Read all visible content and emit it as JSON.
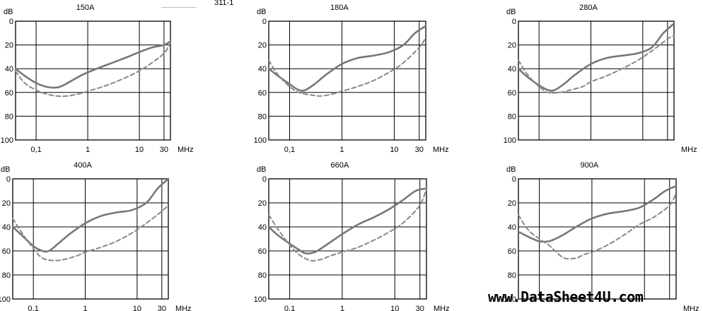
{
  "header_fragment": "311-1",
  "watermark": "www.DataSheet4U.com",
  "chart_data": [
    {
      "type": "line",
      "title": "150A",
      "ylabel": "dB",
      "xunit": "MHz",
      "xscale": "log",
      "xlim": [
        0.04,
        40
      ],
      "ylim": [
        0,
        100
      ],
      "y_inverted": true,
      "x_ticks": [
        "0,1",
        "1",
        "10",
        "30"
      ],
      "y_ticks": [
        "0",
        "20",
        "40",
        "60",
        "80",
        "100"
      ],
      "series": [
        {
          "style": "solid",
          "x": [
            0.04,
            0.06,
            0.1,
            0.15,
            0.22,
            0.3,
            0.45,
            0.8,
            1.5,
            3,
            6,
            10,
            18,
            30,
            40
          ],
          "y": [
            40,
            46,
            52,
            55,
            56,
            55,
            51,
            45,
            40,
            35,
            30,
            26,
            22,
            20,
            17
          ]
        },
        {
          "style": "dashed",
          "x": [
            0.04,
            0.06,
            0.1,
            0.15,
            0.25,
            0.4,
            0.7,
            1,
            2,
            4,
            8,
            15,
            30,
            40
          ],
          "y": [
            42,
            52,
            58,
            61,
            63,
            63,
            61,
            59,
            55,
            50,
            44,
            37,
            27,
            18
          ]
        }
      ]
    },
    {
      "type": "line",
      "title": "180A",
      "ylabel": "dB",
      "xunit": "MHz",
      "xscale": "log",
      "xlim": [
        0.04,
        40
      ],
      "ylim": [
        0,
        100
      ],
      "y_inverted": true,
      "x_ticks": [
        "0,1",
        "1",
        "10",
        "30"
      ],
      "y_ticks": [
        "0",
        "20",
        "40",
        "60",
        "80",
        "100"
      ],
      "series": [
        {
          "style": "solid",
          "x": [
            0.04,
            0.06,
            0.1,
            0.15,
            0.2,
            0.3,
            0.5,
            1,
            2,
            4,
            8,
            15,
            25,
            40
          ],
          "y": [
            40,
            46,
            53,
            58,
            58,
            53,
            45,
            36,
            31,
            29,
            26,
            20,
            10,
            4
          ]
        },
        {
          "style": "dashed",
          "x": [
            0.04,
            0.06,
            0.1,
            0.15,
            0.25,
            0.4,
            0.7,
            1,
            2,
            4,
            8,
            15,
            30,
            40
          ],
          "y": [
            33,
            45,
            55,
            60,
            62,
            63,
            61,
            59,
            55,
            50,
            43,
            35,
            22,
            14
          ]
        }
      ]
    },
    {
      "type": "line",
      "title": "280A",
      "ylabel": "dB",
      "xunit": "MHz",
      "xscale": "log",
      "xlim": [
        0.04,
        40
      ],
      "ylim": [
        0,
        100
      ],
      "y_inverted": true,
      "x_ticks": [],
      "y_ticks": [
        "0",
        "20",
        "40",
        "60",
        "80",
        "100"
      ],
      "series": [
        {
          "style": "solid",
          "x": [
            0.04,
            0.06,
            0.1,
            0.15,
            0.2,
            0.3,
            0.5,
            1,
            2,
            4,
            8,
            15,
            25,
            40
          ],
          "y": [
            40,
            47,
            54,
            58,
            58,
            53,
            45,
            36,
            31,
            29,
            27,
            22,
            10,
            2
          ]
        },
        {
          "style": "dashed",
          "x": [
            0.04,
            0.06,
            0.1,
            0.15,
            0.25,
            0.4,
            0.7,
            1,
            2,
            4,
            8,
            15,
            30,
            40
          ],
          "y": [
            33,
            45,
            55,
            60,
            60,
            58,
            55,
            51,
            46,
            40,
            33,
            25,
            15,
            12
          ]
        }
      ]
    },
    {
      "type": "line",
      "title": "400A",
      "ylabel": "dB",
      "xunit": "MHz",
      "xscale": "log",
      "xlim": [
        0.04,
        40
      ],
      "ylim": [
        0,
        100
      ],
      "y_inverted": true,
      "x_ticks": [
        "0,1",
        "1",
        "10",
        "30"
      ],
      "y_ticks": [
        "0",
        "20",
        "40",
        "60",
        "80",
        "100"
      ],
      "series": [
        {
          "style": "solid",
          "x": [
            0.04,
            0.06,
            0.1,
            0.15,
            0.2,
            0.3,
            0.5,
            1,
            2,
            4,
            8,
            15,
            25,
            40
          ],
          "y": [
            40,
            47,
            56,
            60,
            60,
            54,
            46,
            37,
            31,
            28,
            26,
            20,
            8,
            0
          ]
        },
        {
          "style": "dashed",
          "x": [
            0.04,
            0.06,
            0.1,
            0.15,
            0.25,
            0.4,
            0.7,
            1,
            2,
            4,
            8,
            15,
            30,
            40
          ],
          "y": [
            33,
            45,
            58,
            66,
            68,
            67,
            64,
            61,
            57,
            52,
            45,
            37,
            27,
            22
          ]
        }
      ]
    },
    {
      "type": "line",
      "title": "660A",
      "ylabel": "dB",
      "xunit": "MHz",
      "xscale": "log",
      "xlim": [
        0.04,
        40
      ],
      "ylim": [
        0,
        100
      ],
      "y_inverted": true,
      "x_ticks": [
        "0,1",
        "1",
        "10",
        "30"
      ],
      "y_ticks": [
        "0",
        "20",
        "40",
        "60",
        "80",
        "100"
      ],
      "series": [
        {
          "style": "solid",
          "x": [
            0.04,
            0.06,
            0.1,
            0.15,
            0.2,
            0.3,
            0.5,
            1,
            2,
            4,
            8,
            15,
            25,
            40
          ],
          "y": [
            40,
            47,
            54,
            59,
            62,
            61,
            55,
            46,
            38,
            32,
            25,
            17,
            10,
            8
          ]
        },
        {
          "style": "dashed",
          "x": [
            0.04,
            0.06,
            0.1,
            0.15,
            0.25,
            0.4,
            0.6,
            1,
            2,
            4,
            8,
            15,
            30,
            40
          ],
          "y": [
            30,
            42,
            55,
            63,
            68,
            67,
            64,
            61,
            57,
            51,
            44,
            36,
            22,
            8
          ]
        }
      ]
    },
    {
      "type": "line",
      "title": "900A",
      "ylabel": "dB",
      "xunit": "MHz",
      "xscale": "log",
      "xlim": [
        0.04,
        40
      ],
      "ylim": [
        0,
        100
      ],
      "y_inverted": true,
      "x_ticks": [],
      "y_ticks": [
        "0",
        "20",
        "40",
        "60",
        "80",
        "100"
      ],
      "series": [
        {
          "style": "solid",
          "x": [
            0.04,
            0.06,
            0.1,
            0.15,
            0.2,
            0.3,
            0.5,
            1,
            2,
            4,
            8,
            15,
            25,
            40
          ],
          "y": [
            44,
            48,
            52,
            52,
            50,
            46,
            40,
            33,
            29,
            27,
            24,
            17,
            10,
            6
          ]
        },
        {
          "style": "dashed",
          "x": [
            0.04,
            0.06,
            0.1,
            0.15,
            0.2,
            0.3,
            0.5,
            0.7,
            1,
            2,
            4,
            8,
            15,
            30,
            40
          ],
          "y": [
            30,
            42,
            50,
            55,
            60,
            66,
            66,
            63,
            61,
            55,
            47,
            38,
            32,
            22,
            12
          ]
        }
      ]
    }
  ]
}
